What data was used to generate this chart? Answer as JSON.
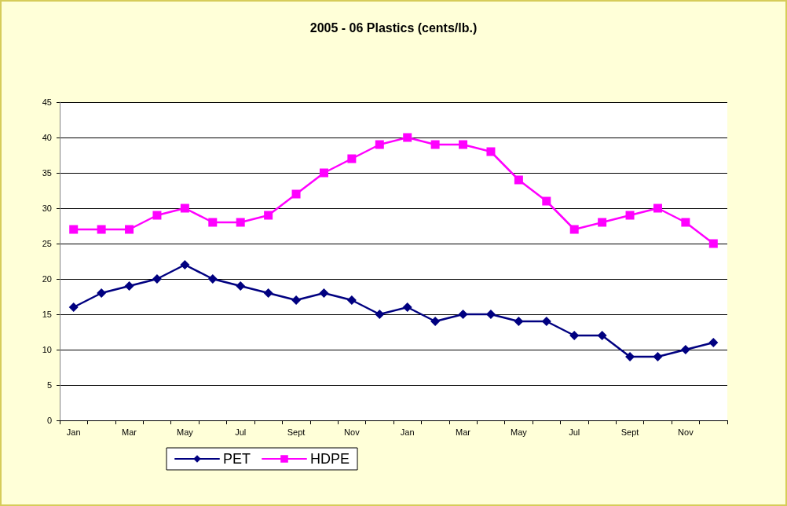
{
  "chart_data": {
    "type": "line",
    "title": "2005 - 06 Plastics (cents/lb.)",
    "categories": [
      "Jan",
      null,
      "Mar",
      null,
      "May",
      null,
      "Jul",
      null,
      "Sept",
      null,
      "Nov",
      null,
      "Jan",
      null,
      "Mar",
      null,
      "May",
      null,
      "Jul",
      null,
      "Sept",
      null,
      "Nov",
      null
    ],
    "series": [
      {
        "name": "PET",
        "color": "#000080",
        "marker": "diamond",
        "values": [
          16,
          18,
          19,
          20,
          22,
          20,
          19,
          18,
          17,
          18,
          17,
          15,
          16,
          14,
          15,
          15,
          14,
          14,
          12,
          12,
          9,
          9,
          10,
          11
        ]
      },
      {
        "name": "HDPE",
        "color": "#ff00ff",
        "marker": "square",
        "values": [
          27,
          27,
          27,
          29,
          30,
          28,
          28,
          29,
          32,
          35,
          37,
          39,
          40,
          39,
          39,
          38,
          34,
          31,
          27,
          28,
          29,
          30,
          28,
          25
        ]
      }
    ],
    "ylim": [
      0,
      45
    ],
    "yticks": [
      0,
      5,
      10,
      15,
      20,
      25,
      30,
      35,
      40,
      45
    ],
    "grid": "y",
    "legend": "bottom left",
    "line_style": "solid"
  }
}
